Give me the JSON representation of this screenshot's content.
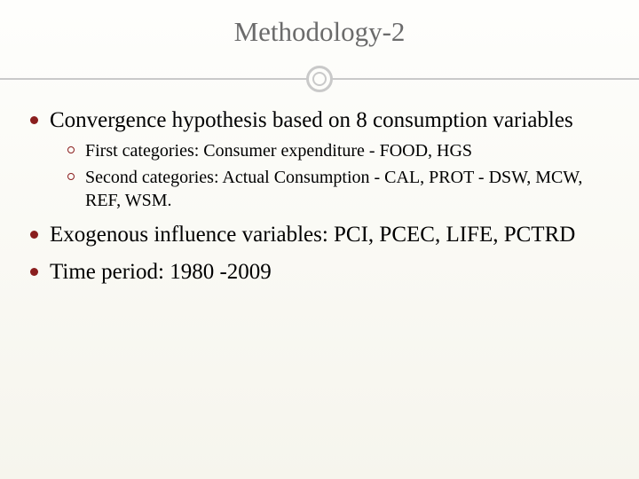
{
  "slide": {
    "title": "Methodology-2",
    "title_color": "#6b6b6b",
    "title_fontsize": 31,
    "divider_color": "#c9c9c9",
    "background_gradient": [
      "#fefefc",
      "#f6f5ed"
    ],
    "body_fontsize_l1": 25,
    "body_fontsize_l2": 20,
    "bullet_fill_l1": "#8a1e1e",
    "bullet_stroke_l2": "#8a1e1e",
    "bullets": {
      "b1": "Convergence hypothesis based on 8 consumption variables",
      "b1_sub": {
        "s1": "First categories: Consumer expenditure - FOOD, HGS",
        "s2": "Second categories: Actual Consumption - CAL, PROT - DSW, MCW, REF, WSM."
      },
      "b2": "Exogenous influence variables: PCI, PCEC, LIFE, PCTRD",
      "b3": "Time period: 1980 -2009"
    }
  }
}
